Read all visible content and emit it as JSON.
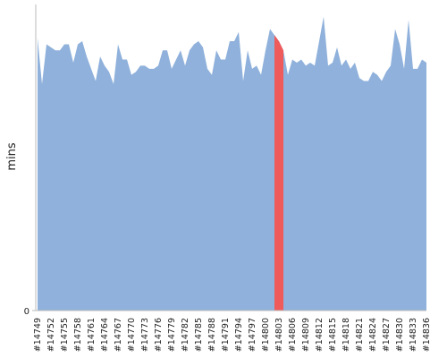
{
  "chart_data": {
    "type": "area",
    "ylabel": "mins",
    "categories": [
      "#14749",
      null,
      null,
      "#14752",
      null,
      null,
      "#14755",
      null,
      null,
      "#14758",
      null,
      null,
      "#14761",
      null,
      null,
      "#14764",
      null,
      null,
      "#14767",
      null,
      null,
      "#14770",
      null,
      null,
      "#14773",
      null,
      null,
      "#14776",
      null,
      null,
      "#14779",
      null,
      null,
      "#14782",
      null,
      null,
      "#14785",
      null,
      null,
      "#14788",
      null,
      null,
      "#14791",
      null,
      null,
      "#14794",
      null,
      null,
      "#14797",
      null,
      null,
      "#14800",
      null,
      null,
      "#14803",
      null,
      null,
      "#14806",
      null,
      null,
      "#14809",
      null,
      null,
      "#14812",
      null,
      null,
      "#14815",
      null,
      null,
      "#14818",
      null,
      null,
      "#14821",
      null,
      null,
      "#14824",
      null,
      null,
      "#14827",
      null,
      null,
      "#14830",
      null,
      null,
      "#14833",
      null,
      null,
      "#14836"
    ],
    "values": [
      89,
      74,
      87,
      86,
      85,
      85,
      87,
      87,
      81,
      87,
      88,
      83,
      79,
      75,
      83,
      80,
      78,
      74,
      87,
      82,
      82,
      77,
      78,
      80,
      80,
      79,
      79,
      80,
      85,
      85,
      79,
      82,
      85,
      80,
      85,
      87,
      88,
      86,
      79,
      77,
      85,
      82,
      82,
      88,
      88,
      91,
      75,
      85,
      79,
      80,
      77,
      85,
      92,
      90,
      88,
      85,
      77,
      82,
      81,
      82,
      80,
      81,
      80,
      88,
      96,
      80,
      81,
      86,
      80,
      82,
      79,
      81,
      76,
      75,
      75,
      78,
      77,
      75,
      78,
      80,
      92,
      87,
      79,
      95,
      79,
      79,
      82,
      81
    ],
    "color": "#8fb1db",
    "highlight": {
      "indices": [
        53,
        55
      ],
      "color": "#ef5a5a"
    },
    "ylim": [
      0,
      100
    ],
    "yticks": [
      0
    ]
  }
}
